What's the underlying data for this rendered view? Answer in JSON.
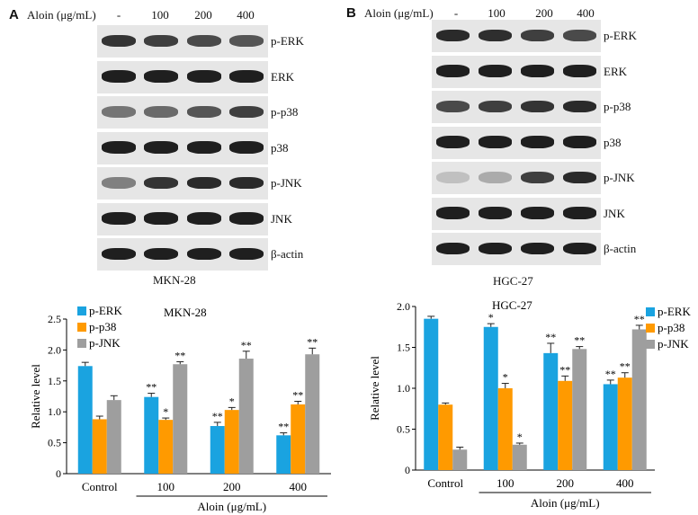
{
  "panels": [
    {
      "letter": "A",
      "dose_header": "Aloin (μg/mL)",
      "doses": [
        "-",
        "100",
        "200",
        "400"
      ],
      "cell_line": "MKN-28",
      "bands": [
        {
          "label": "p-ERK",
          "intensity": [
            0.85,
            0.8,
            0.75,
            0.7
          ]
        },
        {
          "label": "ERK",
          "intensity": [
            0.95,
            0.95,
            0.95,
            0.95
          ]
        },
        {
          "label": "p-p38",
          "intensity": [
            0.55,
            0.6,
            0.7,
            0.8
          ]
        },
        {
          "label": "p38",
          "intensity": [
            0.95,
            0.95,
            0.95,
            0.95
          ]
        },
        {
          "label": "p-JNK",
          "intensity": [
            0.5,
            0.85,
            0.9,
            0.9
          ]
        },
        {
          "label": "JNK",
          "intensity": [
            0.95,
            0.95,
            0.95,
            0.95
          ]
        },
        {
          "label": "β-actin",
          "intensity": [
            0.95,
            0.95,
            0.95,
            0.95
          ]
        }
      ]
    },
    {
      "letter": "B",
      "dose_header": "Aloin (μg/mL)",
      "doses": [
        "-",
        "100",
        "200",
        "400"
      ],
      "cell_line": "HGC-27",
      "bands": [
        {
          "label": "p-ERK",
          "intensity": [
            0.9,
            0.88,
            0.8,
            0.75
          ]
        },
        {
          "label": "ERK",
          "intensity": [
            0.95,
            0.95,
            0.95,
            0.95
          ]
        },
        {
          "label": "p-p38",
          "intensity": [
            0.75,
            0.8,
            0.85,
            0.9
          ]
        },
        {
          "label": "p38",
          "intensity": [
            0.95,
            0.95,
            0.95,
            0.95
          ]
        },
        {
          "label": "p-JNK",
          "intensity": [
            0.2,
            0.3,
            0.8,
            0.9
          ]
        },
        {
          "label": "JNK",
          "intensity": [
            0.95,
            0.95,
            0.95,
            0.95
          ]
        },
        {
          "label": "β-actin",
          "intensity": [
            0.95,
            0.95,
            0.95,
            0.95
          ]
        }
      ]
    }
  ],
  "chart_data": [
    {
      "type": "bar",
      "title": "MKN-28",
      "xlabel": "Aloin (μg/mL)",
      "ylabel": "Relative level",
      "ylim": [
        0,
        2.5
      ],
      "yticks": [
        "0",
        "0.5",
        "1.0",
        "1.5",
        "2.0",
        "2.5"
      ],
      "categories": [
        "Control",
        "100",
        "200",
        "400"
      ],
      "legend_position": "top-left",
      "series": [
        {
          "name": "p-ERK",
          "color": "#1aa3e0",
          "values": [
            1.74,
            1.24,
            0.77,
            0.62
          ],
          "errors": [
            0.06,
            0.06,
            0.06,
            0.04
          ],
          "sig": [
            "",
            "**",
            "**",
            "**"
          ]
        },
        {
          "name": "p-p38",
          "color": "#ff9a00",
          "values": [
            0.88,
            0.87,
            1.03,
            1.12
          ],
          "errors": [
            0.05,
            0.03,
            0.04,
            0.05
          ],
          "sig": [
            "",
            "*",
            "*",
            "**"
          ]
        },
        {
          "name": "p-JNK",
          "color": "#9e9e9e",
          "values": [
            1.19,
            1.77,
            1.86,
            1.93
          ],
          "errors": [
            0.07,
            0.04,
            0.12,
            0.1
          ],
          "sig": [
            "",
            "**",
            "**",
            "**"
          ]
        }
      ]
    },
    {
      "type": "bar",
      "title": "HGC-27",
      "xlabel": "Aloin (μg/mL)",
      "ylabel": "Relative level",
      "ylim": [
        0,
        2.0
      ],
      "yticks": [
        "0",
        "0.5",
        "1.0",
        "1.5",
        "2.0"
      ],
      "categories": [
        "Control",
        "100",
        "200",
        "400"
      ],
      "legend_position": "top-right",
      "series": [
        {
          "name": "p-ERK",
          "color": "#1aa3e0",
          "values": [
            1.85,
            1.75,
            1.43,
            1.05
          ],
          "errors": [
            0.03,
            0.04,
            0.12,
            0.05
          ],
          "sig": [
            "",
            "*",
            "**",
            "**"
          ]
        },
        {
          "name": "p-p38",
          "color": "#ff9a00",
          "values": [
            0.8,
            1.0,
            1.09,
            1.13
          ],
          "errors": [
            0.02,
            0.06,
            0.06,
            0.06
          ],
          "sig": [
            "",
            "*",
            "**",
            "**"
          ]
        },
        {
          "name": "p-JNK",
          "color": "#9e9e9e",
          "values": [
            0.25,
            0.31,
            1.48,
            1.72
          ],
          "errors": [
            0.03,
            0.02,
            0.03,
            0.05
          ],
          "sig": [
            "",
            "*",
            "**",
            "**"
          ]
        }
      ]
    }
  ]
}
